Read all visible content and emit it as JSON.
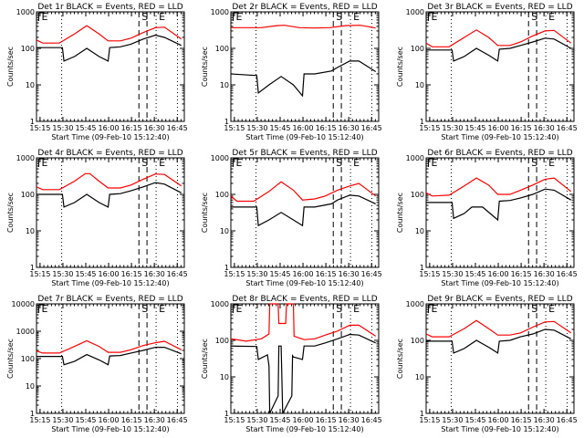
{
  "chart_data": [
    {
      "type": "line",
      "title": "Det 1r BLACK = Events, RED = LLD",
      "xlabel": "Start Time (09-Feb-10 15:12:40)",
      "ylabel": "Counts/sec",
      "yscale": "log",
      "ylim": [
        1,
        1000
      ],
      "yticks": [
        "1",
        "10",
        "100",
        "1000"
      ],
      "xticks": [
        "15:15",
        "15:30",
        "15:45",
        "16:00",
        "16:15",
        "16:30",
        "16:45"
      ],
      "series": [
        {
          "name": "Events",
          "color": "#000000",
          "t": [
            0,
            17,
            18,
            25,
            33,
            41,
            47,
            48,
            55,
            62,
            70,
            78,
            84,
            95
          ],
          "v": [
            105,
            105,
            45,
            60,
            100,
            60,
            45,
            105,
            110,
            130,
            180,
            230,
            200,
            120
          ]
        },
        {
          "name": "LLD",
          "color": "#ff0000",
          "t": [
            0,
            4,
            15,
            25,
            33,
            41,
            47,
            55,
            62,
            70,
            78,
            84,
            95
          ],
          "v": [
            170,
            140,
            140,
            250,
            420,
            250,
            160,
            160,
            190,
            270,
            370,
            380,
            180
          ]
        }
      ]
    },
    {
      "type": "line",
      "title": "Det 2r BLACK = Events, RED = LLD",
      "xlabel": "Start Time (09-Feb-10 15:12:40)",
      "ylabel": "Counts/sec",
      "yscale": "log",
      "ylim": [
        1,
        1000
      ],
      "yticks": [
        "1",
        "10",
        "100",
        "1000"
      ],
      "xticks": [
        "15:15",
        "15:30",
        "15:45",
        "16:00",
        "16:15",
        "16:30",
        "16:45"
      ],
      "series": [
        {
          "name": "Events",
          "color": "#000000",
          "t": [
            0,
            17,
            18,
            25,
            33,
            41,
            47,
            48,
            55,
            66,
            70,
            78,
            84,
            95
          ],
          "v": [
            20,
            18,
            6,
            10,
            17,
            10,
            5,
            20,
            20,
            24,
            30,
            45,
            45,
            23
          ]
        },
        {
          "name": "LLD",
          "color": "#ff0000",
          "t": [
            0,
            20,
            30,
            35,
            45,
            55,
            65,
            75,
            85,
            95
          ],
          "v": [
            370,
            370,
            420,
            430,
            370,
            360,
            370,
            420,
            430,
            360
          ]
        }
      ]
    },
    {
      "type": "line",
      "title": "Det 3r BLACK = Events, RED = LLD",
      "xlabel": "Start Time (09-Feb-10 15:12:40)",
      "ylabel": "Counts/sec",
      "yscale": "log",
      "ylim": [
        1,
        1000
      ],
      "yticks": [
        "1",
        "10",
        "100",
        "1000"
      ],
      "xticks": [
        "15:15",
        "15:30",
        "15:45",
        "16:00",
        "16:15",
        "16:30",
        "16:45"
      ],
      "series": [
        {
          "name": "Events",
          "color": "#000000",
          "t": [
            0,
            17,
            18,
            25,
            33,
            41,
            47,
            48,
            55,
            62,
            70,
            78,
            84,
            95
          ],
          "v": [
            90,
            90,
            45,
            60,
            100,
            65,
            45,
            95,
            100,
            120,
            150,
            190,
            180,
            100
          ]
        },
        {
          "name": "LLD",
          "color": "#ff0000",
          "t": [
            0,
            4,
            15,
            25,
            33,
            41,
            47,
            55,
            62,
            70,
            78,
            84,
            95
          ],
          "v": [
            140,
            110,
            110,
            200,
            320,
            200,
            120,
            120,
            150,
            220,
            300,
            310,
            140
          ]
        }
      ]
    },
    {
      "type": "line",
      "title": "Det 4r BLACK = Events, RED = LLD",
      "xlabel": "Start Time (09-Feb-10 15:12:40)",
      "ylabel": "Counts/sec",
      "yscale": "log",
      "ylim": [
        1,
        1000
      ],
      "yticks": [
        "1",
        "10",
        "100",
        "1000"
      ],
      "xticks": [
        "15:15",
        "15:30",
        "15:45",
        "16:00",
        "16:15",
        "16:30",
        "16:45"
      ],
      "series": [
        {
          "name": "Events",
          "color": "#000000",
          "t": [
            0,
            17,
            18,
            25,
            33,
            41,
            47,
            48,
            55,
            62,
            70,
            78,
            84,
            95
          ],
          "v": [
            100,
            100,
            45,
            60,
            100,
            60,
            45,
            100,
            105,
            125,
            160,
            210,
            190,
            110
          ]
        },
        {
          "name": "LLD",
          "color": "#ff0000",
          "t": [
            0,
            4,
            15,
            25,
            32,
            35,
            41,
            47,
            55,
            62,
            70,
            78,
            84,
            95
          ],
          "v": [
            160,
            135,
            135,
            230,
            370,
            370,
            230,
            150,
            150,
            180,
            260,
            360,
            350,
            170
          ]
        }
      ]
    },
    {
      "type": "line",
      "title": "Det 5r BLACK = Events, RED = LLD",
      "xlabel": "Start Time (09-Feb-10 15:12:40)",
      "ylabel": "Counts/sec",
      "yscale": "log",
      "ylim": [
        1,
        1000
      ],
      "yticks": [
        "1",
        "10",
        "100",
        "1000"
      ],
      "xticks": [
        "15:15",
        "15:30",
        "15:45",
        "16:00",
        "16:15",
        "16:30",
        "16:45"
      ],
      "series": [
        {
          "name": "Events",
          "color": "#000000",
          "t": [
            0,
            17,
            18,
            25,
            33,
            41,
            47,
            48,
            55,
            66,
            70,
            78,
            84,
            95
          ],
          "v": [
            45,
            45,
            14,
            20,
            32,
            20,
            14,
            45,
            45,
            55,
            70,
            95,
            90,
            55
          ]
        },
        {
          "name": "LLD",
          "color": "#ff0000",
          "t": [
            0,
            4,
            15,
            25,
            33,
            41,
            47,
            55,
            62,
            70,
            78,
            84,
            95
          ],
          "v": [
            90,
            65,
            65,
            120,
            220,
            130,
            70,
            75,
            90,
            130,
            170,
            200,
            90
          ]
        }
      ]
    },
    {
      "type": "line",
      "title": "Det 6r BLACK = Events, RED = LLD",
      "xlabel": "Start Time (09-Feb-10 15:12:40)",
      "ylabel": "Counts/sec",
      "yscale": "log",
      "ylim": [
        1,
        1000
      ],
      "yticks": [
        "1",
        "10",
        "100",
        "1000"
      ],
      "xticks": [
        "15:15",
        "15:30",
        "15:45",
        "16:00",
        "16:15",
        "16:30",
        "16:45"
      ],
      "series": [
        {
          "name": "Events",
          "color": "#000000",
          "t": [
            0,
            17,
            18,
            25,
            30,
            37,
            47,
            48,
            55,
            62,
            70,
            78,
            84,
            95
          ],
          "v": [
            60,
            60,
            22,
            30,
            45,
            45,
            20,
            65,
            68,
            80,
            100,
            140,
            130,
            70
          ]
        },
        {
          "name": "LLD",
          "color": "#ff0000",
          "t": [
            0,
            4,
            15,
            25,
            33,
            41,
            47,
            55,
            62,
            70,
            78,
            84,
            95
          ],
          "v": [
            110,
            90,
            95,
            170,
            280,
            180,
            100,
            100,
            130,
            180,
            260,
            280,
            120
          ]
        }
      ]
    },
    {
      "type": "line",
      "title": "Det 7r BLACK = Events, RED = LLD",
      "xlabel": "Start Time (09-Feb-10 15:12:40)",
      "ylabel": "Counts/sec",
      "yscale": "log",
      "ylim": [
        1,
        10000
      ],
      "yticks": [
        "1",
        "10",
        "100",
        "1000",
        "10000"
      ],
      "xticks": [
        "15:15",
        "15:30",
        "15:45",
        "16:00",
        "16:15",
        "16:30",
        "16:45"
      ],
      "series": [
        {
          "name": "Events",
          "color": "#000000",
          "t": [
            0,
            17,
            18,
            25,
            33,
            41,
            47,
            48,
            55,
            62,
            70,
            78,
            84,
            95
          ],
          "v": [
            120,
            120,
            60,
            80,
            140,
            90,
            60,
            125,
            130,
            160,
            200,
            260,
            260,
            150
          ]
        },
        {
          "name": "LLD",
          "color": "#ff0000",
          "t": [
            0,
            4,
            15,
            25,
            33,
            41,
            47,
            55,
            62,
            70,
            78,
            84,
            95
          ],
          "v": [
            190,
            160,
            160,
            280,
            450,
            280,
            170,
            170,
            210,
            300,
            380,
            430,
            210
          ]
        }
      ]
    },
    {
      "type": "line",
      "title": "Det 8r BLACK = Events, RED = LLD",
      "xlabel": "Start Time (09-Feb-10 15:12:40)",
      "ylabel": "Counts/sec",
      "yscale": "log",
      "ylim": [
        1,
        1000
      ],
      "yticks": [
        "1",
        "10",
        "100",
        "1000"
      ],
      "xticks": [
        "15:15",
        "15:30",
        "15:45",
        "16:00",
        "16:15",
        "16:30",
        "16:45"
      ],
      "series": [
        {
          "name": "Events",
          "color": "#000000",
          "t": [
            0,
            17,
            18,
            24,
            25,
            25.5,
            31,
            31.5,
            33,
            34,
            40,
            40.5,
            41,
            47,
            48,
            55,
            62,
            70,
            78,
            84,
            95
          ],
          "v": [
            70,
            68,
            30,
            40,
            20,
            1,
            3,
            70,
            70,
            1,
            3,
            38,
            35,
            30,
            70,
            70,
            85,
            110,
            145,
            140,
            85
          ]
        },
        {
          "name": "LLD",
          "color": "#ff0000",
          "t": [
            0,
            10,
            20,
            25,
            25.5,
            31,
            31.5,
            36,
            36.5,
            41,
            41.5,
            48,
            55,
            62,
            70,
            78,
            84,
            95
          ],
          "v": [
            110,
            95,
            110,
            150,
            1000,
            1000,
            290,
            290,
            1000,
            1000,
            130,
            105,
            110,
            140,
            180,
            260,
            260,
            130
          ]
        }
      ]
    },
    {
      "type": "line",
      "title": "Det 9r BLACK = Events, RED = LLD",
      "xlabel": "Start Time (09-Feb-10 15:12:40)",
      "ylabel": "Counts/sec",
      "yscale": "log",
      "ylim": [
        1,
        1000
      ],
      "yticks": [
        "1",
        "10",
        "100",
        "1000"
      ],
      "xticks": [
        "15:15",
        "15:30",
        "15:45",
        "16:00",
        "16:15",
        "16:30",
        "16:45"
      ],
      "series": [
        {
          "name": "Events",
          "color": "#000000",
          "t": [
            0,
            17,
            18,
            25,
            33,
            41,
            47,
            48,
            55,
            62,
            70,
            78,
            84,
            95
          ],
          "v": [
            95,
            95,
            45,
            60,
            100,
            65,
            45,
            95,
            100,
            125,
            150,
            200,
            190,
            110
          ]
        },
        {
          "name": "LLD",
          "color": "#ff0000",
          "t": [
            0,
            4,
            15,
            25,
            33,
            41,
            47,
            55,
            62,
            70,
            78,
            84,
            95
          ],
          "v": [
            150,
            125,
            125,
            210,
            350,
            210,
            140,
            140,
            160,
            230,
            320,
            330,
            160
          ]
        }
      ]
    }
  ],
  "time_axis": {
    "start": "15:12:40",
    "end_minutes": 97,
    "tick_minutes": [
      2.33,
      17.33,
      32.33,
      47.33,
      62.33,
      77.33,
      92.33
    ]
  },
  "markers": [
    {
      "label": "E",
      "t": 1.5,
      "style": "dotted-left"
    },
    {
      "label": "",
      "t": 16.5,
      "style": "dotted"
    },
    {
      "label": "S",
      "t": 67.2,
      "style": "dashed"
    },
    {
      "label": "",
      "t": 72.5,
      "style": "dashed"
    },
    {
      "label": "E",
      "t": 78.5,
      "style": "dotted"
    },
    {
      "label": "",
      "t": 92.5,
      "style": "dotted"
    }
  ]
}
